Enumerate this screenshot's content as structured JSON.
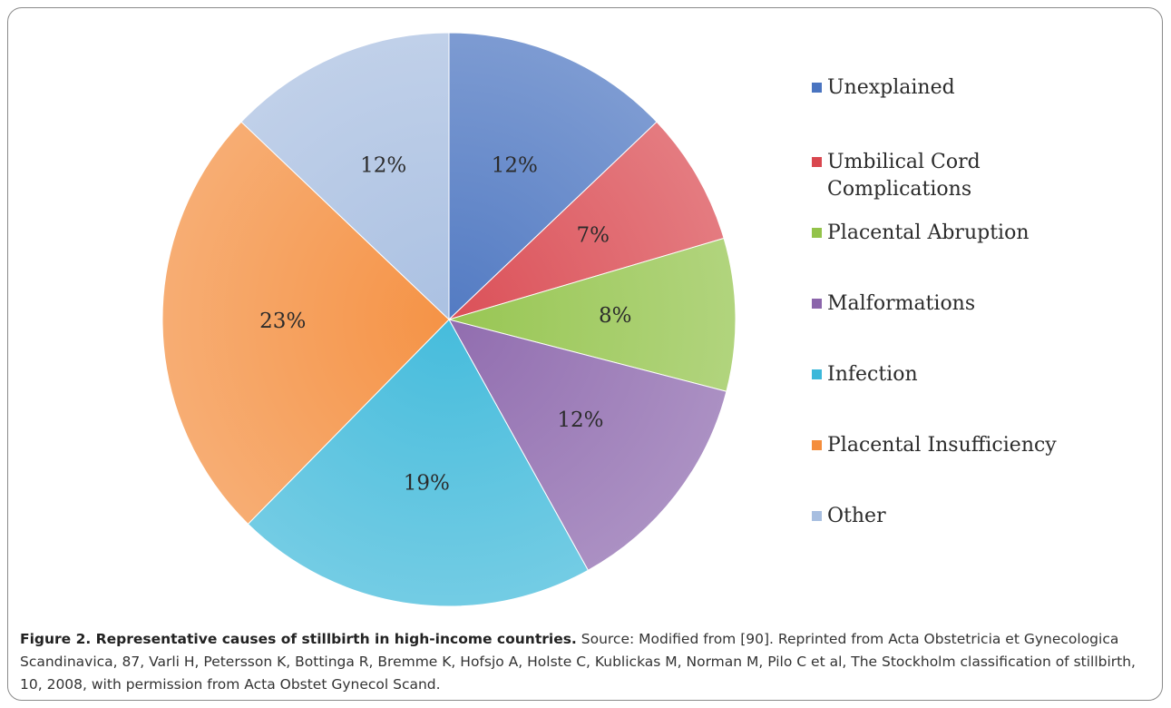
{
  "chart_data": {
    "type": "pie",
    "title": "",
    "start": "12 o'clock, clockwise",
    "legend_position": "right",
    "slices": [
      {
        "label": "Unexplained",
        "value": 12,
        "display": "12%",
        "color": "#4a74c0"
      },
      {
        "label": "Umbilical Cord Complications",
        "value": 7,
        "display": "7%",
        "color": "#d9474f"
      },
      {
        "label": "Placental Abruption",
        "value": 8,
        "display": "8%",
        "color": "#93c34a"
      },
      {
        "label": "Malformations",
        "value": 12,
        "display": "12%",
        "color": "#8b65ab"
      },
      {
        "label": "Infection",
        "value": 19,
        "display": "19%",
        "color": "#3cb8da"
      },
      {
        "label": "Placental Insufficiency",
        "value": 23,
        "display": "23%",
        "color": "#f48d3c"
      },
      {
        "label": "Other",
        "value": 12,
        "display": "12%",
        "color": "#a7bee0"
      }
    ]
  },
  "legend": {
    "items": [
      "Unexplained",
      "Umbilical Cord\nComplications",
      "Placental Abruption",
      "Malformations",
      "Infection",
      "Placental Insufficiency",
      "Other"
    ]
  },
  "caption": {
    "title": "Figure 2. Representative causes of stillbirth in high-income countries.",
    "text": " Source: Modified from [90]. Reprinted from Acta Obstetricia et Gynecologica Scandinavica, 87, Varli H, Petersson K, Bottinga R, Bremme K, Hofsjo A, Holste C, Kublickas M, Norman M, Pilo C et al, The Stockholm classification of stillbirth, 10, 2008, with permission from Acta Obstet Gynecol Scand."
  }
}
